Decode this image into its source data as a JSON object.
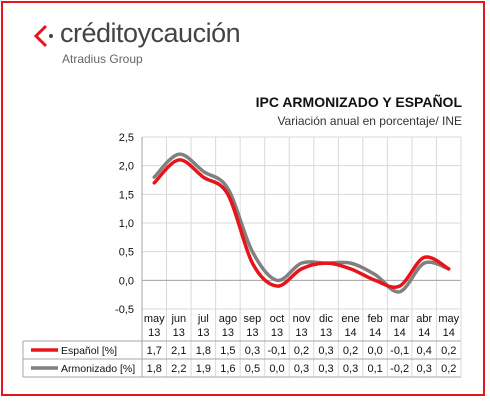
{
  "logo": {
    "brand": "créditoycaución",
    "group": "Atradius Group"
  },
  "chart_data": {
    "type": "line",
    "title": "IPC ARMONIZADO Y ESPAÑOL",
    "subtitle": "Variación anual en porcentaje/ INE",
    "categories": [
      [
        "may",
        "13"
      ],
      [
        "jun",
        "13"
      ],
      [
        "jul",
        "13"
      ],
      [
        "ago",
        "13"
      ],
      [
        "sep",
        "13"
      ],
      [
        "oct",
        "13"
      ],
      [
        "nov",
        "13"
      ],
      [
        "dic",
        "13"
      ],
      [
        "ene",
        "14"
      ],
      [
        "feb",
        "14"
      ],
      [
        "mar",
        "14"
      ],
      [
        "abr",
        "14"
      ],
      [
        "may",
        "14"
      ]
    ],
    "ylim": [
      -0.5,
      2.5
    ],
    "yticks": [
      "-0,5",
      "0,0",
      "0,5",
      "1,0",
      "1,5",
      "2,0",
      "2,5"
    ],
    "grid": true,
    "series": [
      {
        "name": "Español [%]",
        "color": "#e8141b",
        "values": [
          1.7,
          2.1,
          1.8,
          1.5,
          0.3,
          -0.1,
          0.2,
          0.3,
          0.2,
          0.0,
          -0.1,
          0.4,
          0.2
        ],
        "labels": [
          "1,7",
          "2,1",
          "1,8",
          "1,5",
          "0,3",
          "-0,1",
          "0,2",
          "0,3",
          "0,2",
          "0,0",
          "-0,1",
          "0,4",
          "0,2"
        ]
      },
      {
        "name": "Armonizado [%]",
        "color": "#808080",
        "values": [
          1.8,
          2.2,
          1.9,
          1.6,
          0.5,
          0.0,
          0.3,
          0.3,
          0.3,
          0.1,
          -0.2,
          0.3,
          0.2
        ],
        "labels": [
          "1,8",
          "2,2",
          "1,9",
          "1,6",
          "0,5",
          "0,0",
          "0,3",
          "0,3",
          "0,3",
          "0,1",
          "-0,2",
          "0,3",
          "0,2"
        ]
      }
    ]
  }
}
